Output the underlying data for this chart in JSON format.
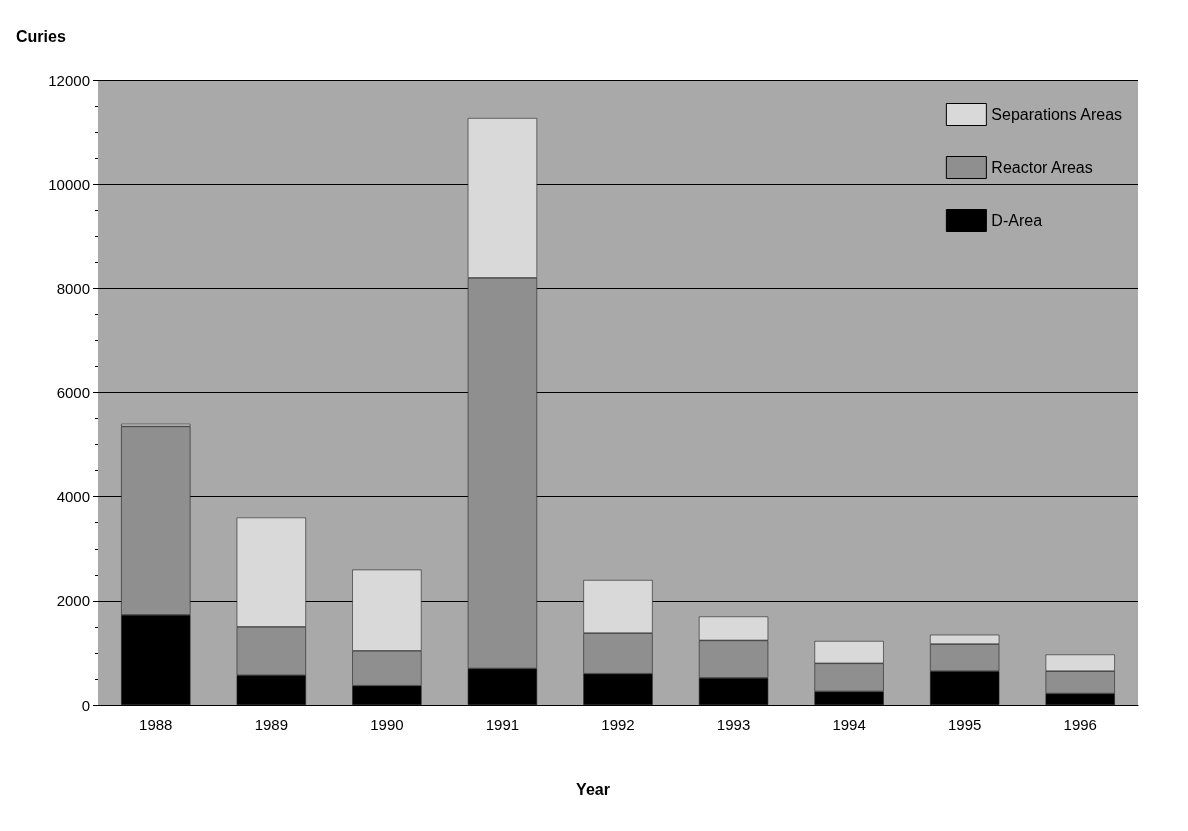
{
  "chart_data": {
    "type": "bar",
    "stacked": true,
    "ylabel": "Curies",
    "xlabel": "Year",
    "categories": [
      "1988",
      "1989",
      "1990",
      "1991",
      "1992",
      "1993",
      "1994",
      "1995",
      "1996"
    ],
    "series": [
      {
        "name": "D-Area",
        "color": "#000000",
        "values": [
          1730,
          570,
          370,
          700,
          600,
          520,
          260,
          650,
          220
        ]
      },
      {
        "name": "Reactor Areas",
        "color": "#8f8f8f",
        "values": [
          3620,
          930,
          670,
          7500,
          780,
          720,
          540,
          520,
          430
        ]
      },
      {
        "name": "Separations Areas",
        "color": "#d9d9d9",
        "values": [
          50,
          2100,
          1560,
          3070,
          1020,
          460,
          430,
          180,
          320
        ]
      }
    ],
    "ylim": [
      0,
      12000
    ],
    "yticks": [
      0,
      2000,
      4000,
      6000,
      8000,
      10000,
      12000
    ],
    "grid": "y",
    "legend": "top right"
  }
}
